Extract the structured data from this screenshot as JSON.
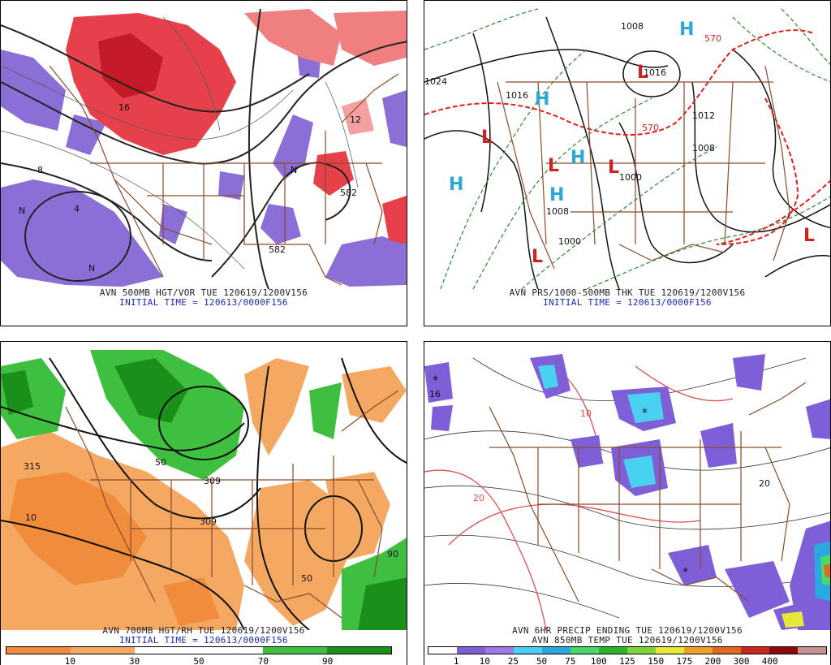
{
  "panels": {
    "p500": {
      "caption": "AVN 500MB HGT/VOR TUE 120619/1200V156",
      "initial": "INITIAL TIME = 120613/0000F156",
      "labels": [
        "582",
        "582",
        "N",
        "N",
        "N",
        "8",
        "12",
        "16",
        "4"
      ]
    },
    "pprs": {
      "caption": "AVN PRS/1000-500MB THK TUE 120619/1200V156",
      "initial": "INITIAL TIME = 120613/0000F156",
      "labels": [
        "1008",
        "1016",
        "1012",
        "1008",
        "1000",
        "1000",
        "1008",
        "1016",
        "1024",
        "570",
        "570",
        "H",
        "H",
        "H",
        "H",
        "H",
        "L",
        "L",
        "L",
        "L",
        "L",
        "L"
      ]
    },
    "p700": {
      "caption": "AVN 700MB HGT/RH TUE 120619/1200V156",
      "initial": "INITIAL TIME = 120613/0000F156",
      "labels": [
        "315",
        "309",
        "309",
        "50",
        "50",
        "10",
        "90"
      ],
      "colorbar": {
        "colors": [
          "#f08c3c",
          "#f5a862",
          "#ffffff",
          "#ffffff",
          "#3fbf3f",
          "#1a8f1a"
        ],
        "ticks": [
          "10",
          "30",
          "50",
          "70",
          "90"
        ]
      }
    },
    "pprecip": {
      "caption": "AVN 6HR PRECIP ENDING TUE 120619/1200V156",
      "caption2": "AVN 850MB TEMP TUE 120619/1200V156",
      "labels": [
        "16",
        "20",
        "20",
        "10",
        "*",
        "*",
        "*"
      ],
      "colorbar": {
        "colors": [
          "#ffffff",
          "#7f5fd8",
          "#a07ae8",
          "#4ad0f0",
          "#2aa8e0",
          "#4bd86b",
          "#2ab52a",
          "#7fd43a",
          "#e8e83a",
          "#f0a02a",
          "#e06a1e",
          "#c8281e",
          "#8c0a0a",
          "#c89090"
        ],
        "ticks": [
          "1",
          "10",
          "25",
          "50",
          "75",
          "100",
          "125",
          "150",
          "175",
          "200",
          "300",
          "400"
        ]
      }
    }
  }
}
